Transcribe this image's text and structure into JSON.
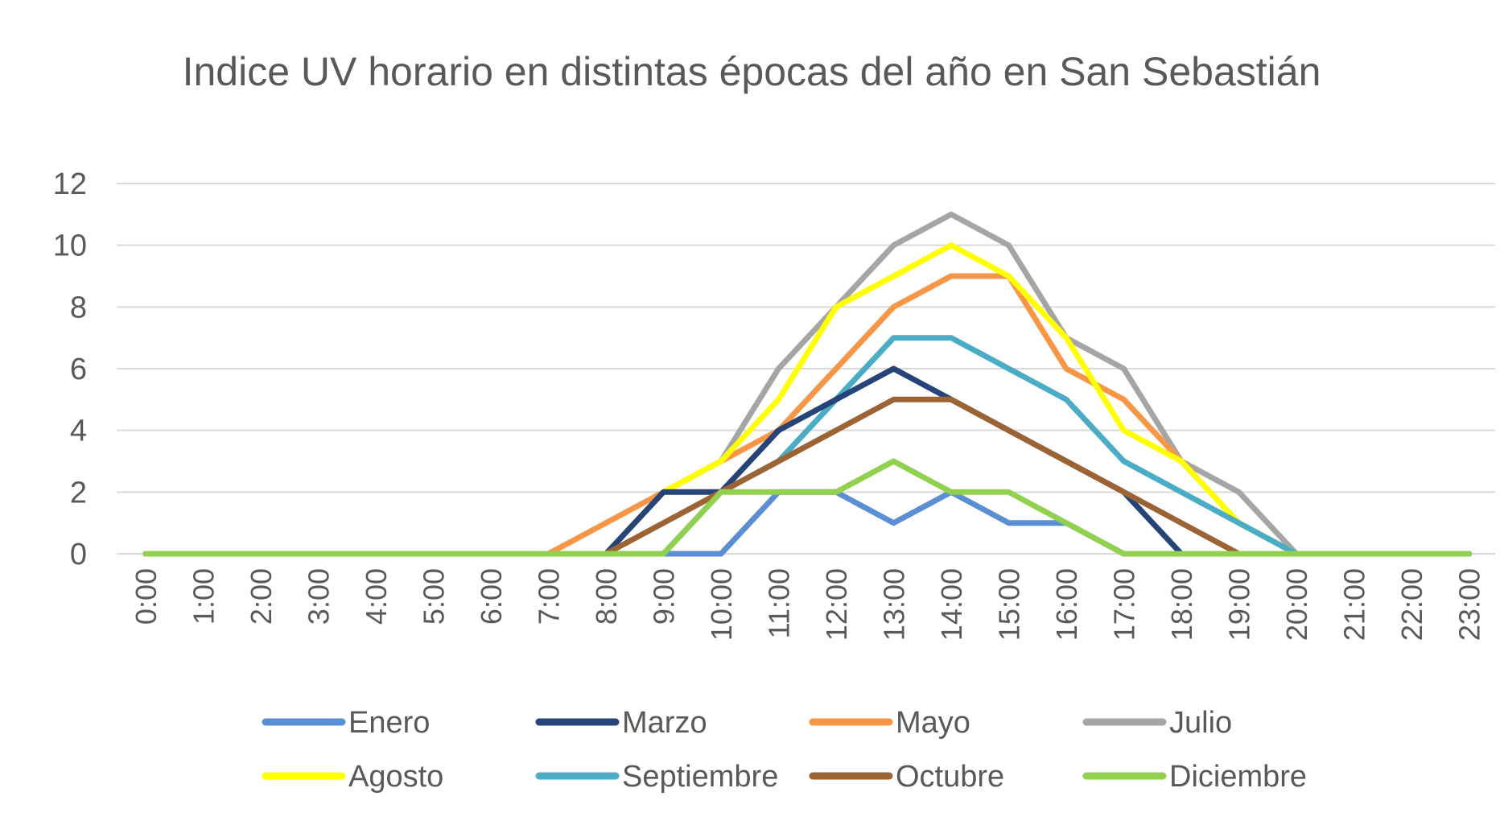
{
  "chart_data": {
    "type": "line",
    "title": "Indice UV horario en distintas épocas del año en San Sebastián",
    "xlabel": "",
    "ylabel": "",
    "ylim": [
      0,
      12
    ],
    "yticks": [
      0,
      2,
      4,
      6,
      8,
      10,
      12
    ],
    "grid": true,
    "legend_position": "bottom",
    "categories": [
      "0:00",
      "1:00",
      "2:00",
      "3:00",
      "4:00",
      "5:00",
      "6:00",
      "7:00",
      "8:00",
      "9:00",
      "10:00",
      "11:00",
      "12:00",
      "13:00",
      "14:00",
      "15:00",
      "16:00",
      "17:00",
      "18:00",
      "19:00",
      "20:00",
      "21:00",
      "22:00",
      "23:00"
    ],
    "series": [
      {
        "name": "Enero",
        "color": "#5B8FD4",
        "values": [
          0,
          0,
          0,
          0,
          0,
          0,
          0,
          0,
          0,
          0,
          0,
          2,
          2,
          1,
          2,
          1,
          1,
          0,
          0,
          0,
          0,
          0,
          0,
          0
        ]
      },
      {
        "name": "Marzo",
        "color": "#264478",
        "values": [
          0,
          0,
          0,
          0,
          0,
          0,
          0,
          0,
          0,
          2,
          2,
          4,
          5,
          6,
          5,
          4,
          3,
          2,
          0,
          0,
          0,
          0,
          0,
          0
        ]
      },
      {
        "name": "Mayo",
        "color": "#F79646",
        "values": [
          0,
          0,
          0,
          0,
          0,
          0,
          0,
          0,
          1,
          2,
          3,
          4,
          6,
          8,
          9,
          9,
          6,
          5,
          3,
          1,
          0,
          0,
          0,
          0
        ]
      },
      {
        "name": "Julio",
        "color": "#A5A5A5",
        "values": [
          0,
          0,
          0,
          0,
          0,
          0,
          0,
          0,
          0,
          2,
          3,
          6,
          8,
          10,
          11,
          10,
          7,
          6,
          3,
          2,
          0,
          0,
          0,
          0
        ]
      },
      {
        "name": "Agosto",
        "color": "#FFFF00",
        "values": [
          0,
          0,
          0,
          0,
          0,
          0,
          0,
          0,
          0,
          2,
          3,
          5,
          8,
          9,
          10,
          9,
          7,
          4,
          3,
          1,
          0,
          0,
          0,
          0
        ]
      },
      {
        "name": "Septiembre",
        "color": "#4BACC6",
        "values": [
          0,
          0,
          0,
          0,
          0,
          0,
          0,
          0,
          0,
          0,
          2,
          3,
          5,
          7,
          7,
          6,
          5,
          3,
          2,
          1,
          0,
          0,
          0,
          0
        ]
      },
      {
        "name": "Octubre",
        "color": "#9C6434",
        "values": [
          0,
          0,
          0,
          0,
          0,
          0,
          0,
          0,
          0,
          1,
          2,
          3,
          4,
          5,
          5,
          4,
          3,
          2,
          1,
          0,
          0,
          0,
          0,
          0
        ]
      },
      {
        "name": "Diciembre",
        "color": "#92D050",
        "values": [
          0,
          0,
          0,
          0,
          0,
          0,
          0,
          0,
          0,
          0,
          2,
          2,
          2,
          3,
          2,
          2,
          1,
          0,
          0,
          0,
          0,
          0,
          0,
          0
        ]
      }
    ],
    "draw_order": [
      "Julio",
      "Mayo",
      "Agosto",
      "Septiembre",
      "Marzo",
      "Octubre",
      "Enero",
      "Diciembre"
    ]
  }
}
